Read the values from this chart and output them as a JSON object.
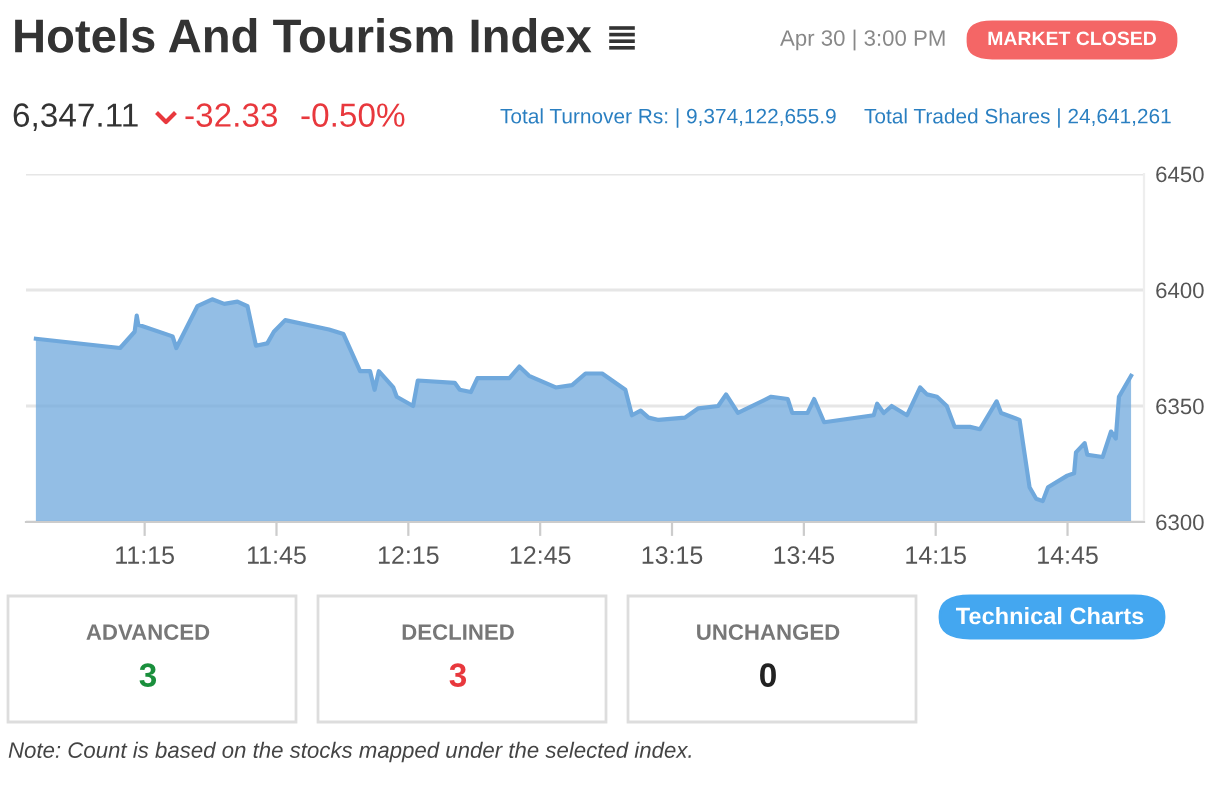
{
  "chart_data": {
    "type": "area",
    "title": "Hotels And Tourism Index",
    "x": [
      10.8375,
      11.157,
      11.212,
      11.22,
      11.226,
      11.356,
      11.37,
      11.45,
      11.506,
      11.552,
      11.602,
      11.64,
      11.672,
      11.715,
      11.74,
      11.783,
      11.949,
      12.004,
      12.067,
      12.105,
      12.122,
      12.138,
      12.193,
      12.206,
      12.268,
      12.286,
      12.426,
      12.445,
      12.487,
      12.512,
      12.633,
      12.671,
      12.708,
      12.809,
      12.871,
      12.922,
      12.985,
      13.073,
      13.098,
      13.131,
      13.161,
      13.199,
      13.299,
      13.35,
      13.425,
      13.455,
      13.5,
      13.626,
      13.689,
      13.706,
      13.764,
      13.789,
      13.827,
      14.015,
      14.028,
      14.053,
      14.083,
      14.141,
      14.191,
      14.217,
      14.255,
      14.292,
      14.322,
      14.38,
      14.418,
      14.481,
      14.498,
      14.568,
      14.606,
      14.631,
      14.656,
      14.676,
      14.749,
      14.775,
      14.782,
      14.815,
      14.825,
      14.883,
      14.915,
      14.933,
      14.945,
      14.991
    ],
    "series": [
      {
        "color": "#6fa8dc",
        "values": [
          6379,
          6375,
          6382,
          6389,
          6385,
          6380,
          6375,
          6393,
          6396,
          6394,
          6395,
          6393,
          6376,
          6377,
          6382,
          6387,
          6383,
          6381,
          6365,
          6365,
          6357,
          6365,
          6358,
          6354,
          6350,
          6361,
          6360,
          6357,
          6356,
          6362,
          6362,
          6367,
          6363,
          6358,
          6359,
          6364,
          6364,
          6357,
          6346,
          6348,
          6345,
          6344,
          6345,
          6349,
          6350,
          6355,
          6347,
          6354,
          6353,
          6347,
          6347,
          6353,
          6343,
          6346,
          6351,
          6347,
          6350,
          6346,
          6358,
          6355,
          6354,
          6350,
          6341,
          6341,
          6340,
          6352,
          6347,
          6344,
          6315,
          6310,
          6309,
          6315,
          6320,
          6321,
          6330,
          6334,
          6329,
          6328,
          6339,
          6336,
          6354,
          6363
        ]
      }
    ],
    "xlim": [
      10.8,
      15.04
    ],
    "xticks": [
      {
        "value": 11.25,
        "label": "11:15"
      },
      {
        "value": 11.75,
        "label": "11:45"
      },
      {
        "value": 12.25,
        "label": "12:15"
      },
      {
        "value": 12.75,
        "label": "12:45"
      },
      {
        "value": 13.25,
        "label": "13:15"
      },
      {
        "value": 13.75,
        "label": "13:45"
      },
      {
        "value": 14.25,
        "label": "14:15"
      },
      {
        "value": 14.75,
        "label": "14:45"
      }
    ],
    "ylim": [
      6300,
      6450
    ],
    "yticks": [
      6300,
      6350,
      6400,
      6450
    ],
    "grid": "y",
    "legend": false,
    "annotations": [
      "Apr 30 | 3:00 PM",
      "MARKET CLOSED",
      "6,347.11",
      "-32.33",
      "-0.50%",
      "Total Turnover Rs: | 9,374,122,655.9",
      "Total Traded Shares | 24,641,261",
      "ADVANCED",
      "3",
      "DECLINED",
      "3",
      "UNCHANGED",
      "0",
      "Technical Charts",
      "Note: Count is based on the stocks mapped under the selected index."
    ]
  }
}
